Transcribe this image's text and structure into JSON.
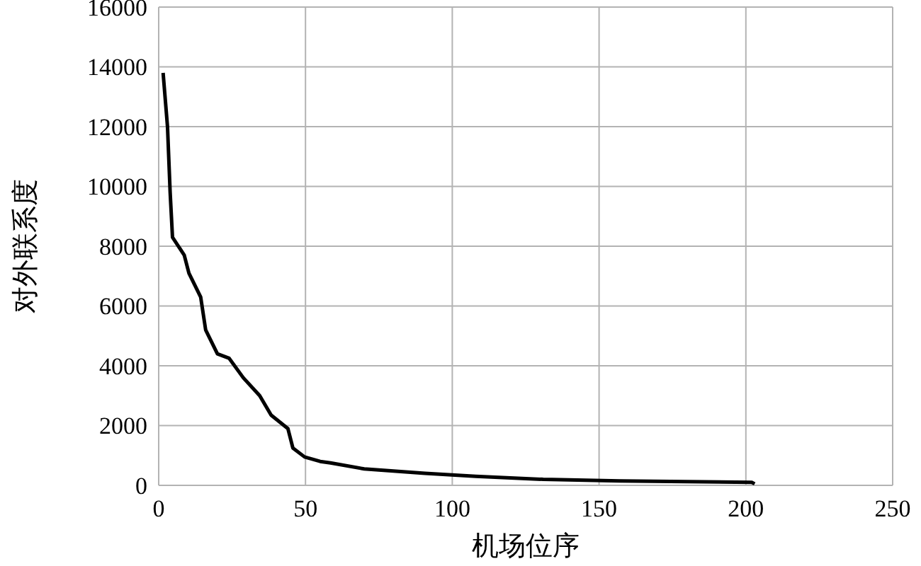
{
  "chart_data": {
    "type": "line",
    "xlabel": "机场位序",
    "ylabel": "对外联系度",
    "series": [
      {
        "color": "#000000",
        "x": [
          1.5,
          3,
          3.9,
          4.7,
          8.7,
          10.3,
          14.3,
          16,
          20,
          24,
          28.8,
          34.4,
          38.3,
          44,
          45.7,
          49.7,
          55,
          58.5,
          70,
          90.7,
          108,
          131,
          157,
          202,
          203
        ],
        "values": [
          13800,
          12000,
          9800,
          8300,
          7700,
          7100,
          6300,
          5200,
          4400,
          4250,
          3600,
          3000,
          2350,
          1900,
          1250,
          950,
          800,
          750,
          550,
          400,
          300,
          200,
          150,
          100,
          50
        ]
      }
    ],
    "xlim": [
      0,
      250
    ],
    "xticks": [
      0,
      50,
      100,
      150,
      200,
      250
    ],
    "ylim": [
      0,
      16000
    ],
    "yticks": [
      0,
      2000,
      4000,
      6000,
      8000,
      10000,
      12000,
      14000,
      16000
    ],
    "grid": true,
    "marker": "none",
    "line_style": "solid"
  }
}
